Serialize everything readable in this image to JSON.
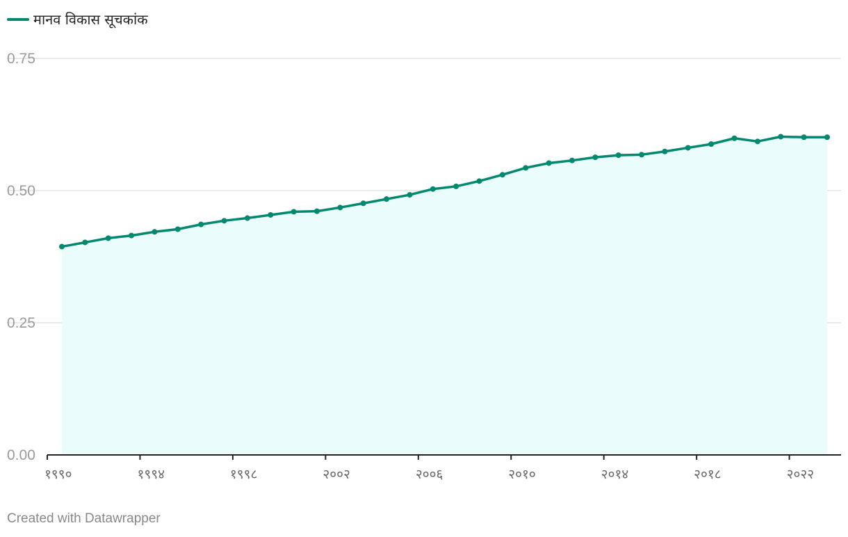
{
  "colors": {
    "line": "#00896f",
    "area_fill": "#eafcfb",
    "grid": "#e3e3e3",
    "axis": "#222222",
    "tick_text": "#9a9a9a",
    "x_tick_text": "#666666"
  },
  "legend": {
    "label": "मानव विकास सूचकांक"
  },
  "footer": {
    "credit": "Created with Datawrapper"
  },
  "chart_data": {
    "type": "area",
    "title": "",
    "xlabel": "",
    "ylabel": "",
    "xlim": [
      1990,
      2023
    ],
    "ylim": [
      0,
      0.75
    ],
    "grid": true,
    "legend_position": "top-left",
    "y_ticks": [
      {
        "value": 0.75,
        "label": "0.75"
      },
      {
        "value": 0.5,
        "label": "0.50"
      },
      {
        "value": 0.25,
        "label": "0.25"
      },
      {
        "value": 0.0,
        "label": "0.00"
      }
    ],
    "x_ticks": [
      {
        "value": 1990,
        "label": "१९९०"
      },
      {
        "value": 1994,
        "label": "१९९४"
      },
      {
        "value": 1998,
        "label": "१९९८"
      },
      {
        "value": 2002,
        "label": "२००२"
      },
      {
        "value": 2006,
        "label": "२००६"
      },
      {
        "value": 2010,
        "label": "२०१०"
      },
      {
        "value": 2014,
        "label": "२०१४"
      },
      {
        "value": 2018,
        "label": "२०१८"
      },
      {
        "value": 2022,
        "label": "२०२२"
      }
    ],
    "series": [
      {
        "name": "मानव विकास सूचकांक",
        "x": [
          1990,
          1991,
          1992,
          1993,
          1994,
          1995,
          1996,
          1997,
          1998,
          1999,
          2000,
          2001,
          2002,
          2003,
          2004,
          2005,
          2006,
          2007,
          2008,
          2009,
          2010,
          2011,
          2012,
          2013,
          2014,
          2015,
          2016,
          2017,
          2018,
          2019,
          2020,
          2021,
          2022,
          2023
        ],
        "values": [
          0.394,
          0.402,
          0.41,
          0.415,
          0.422,
          0.427,
          0.436,
          0.443,
          0.448,
          0.454,
          0.46,
          0.461,
          0.468,
          0.476,
          0.484,
          0.492,
          0.503,
          0.508,
          0.518,
          0.53,
          0.543,
          0.552,
          0.557,
          0.563,
          0.567,
          0.568,
          0.574,
          0.581,
          0.588,
          0.599,
          0.593,
          0.602,
          0.601,
          0.601
        ]
      }
    ]
  }
}
